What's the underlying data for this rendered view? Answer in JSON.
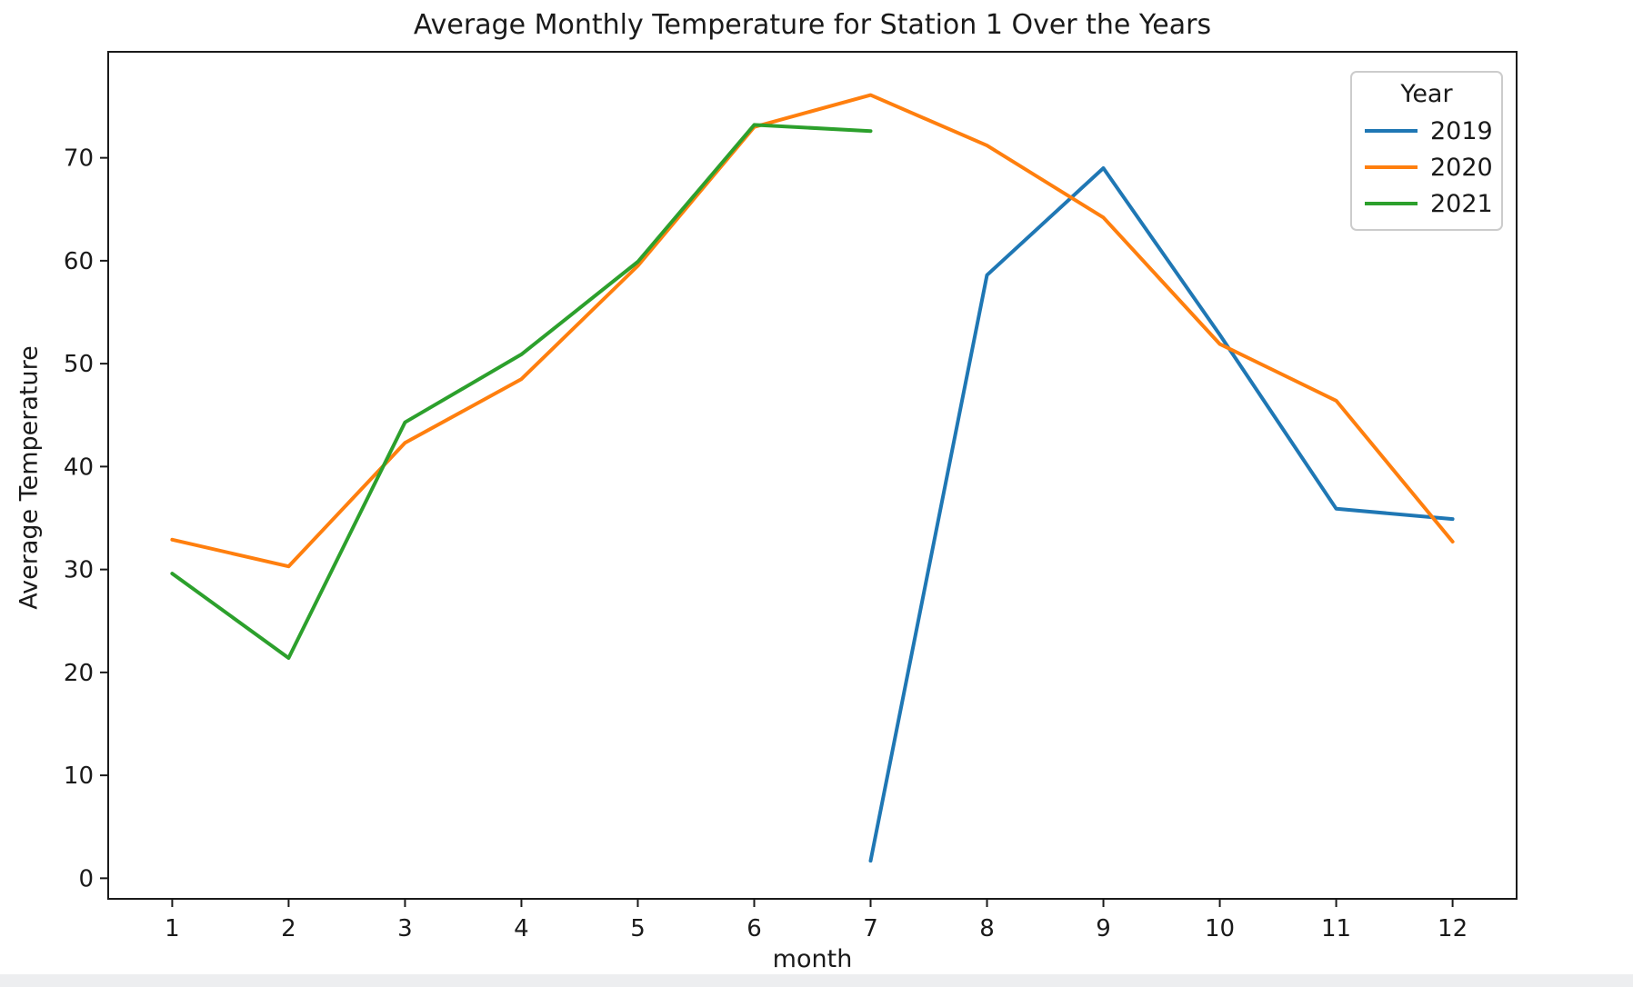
{
  "chart_data": {
    "type": "line",
    "title": "Average Monthly Temperature for Station 1 Over the Years",
    "xlabel": "month",
    "ylabel": "Average Temperature",
    "xlim": [
      0.45,
      12.55
    ],
    "ylim": [
      -2,
      80.3
    ],
    "xticks": [
      1,
      2,
      3,
      4,
      5,
      6,
      7,
      8,
      9,
      10,
      11,
      12
    ],
    "yticks": [
      0,
      10,
      20,
      30,
      40,
      50,
      60,
      70
    ],
    "grid": false,
    "legend": {
      "title": "Year",
      "position": "upper right"
    },
    "series": [
      {
        "name": "2019",
        "color": "#1f77b4",
        "x": [
          7,
          8,
          9,
          10,
          11,
          12
        ],
        "y": [
          1.7,
          58.6,
          69.0,
          52.8,
          35.9,
          34.9
        ]
      },
      {
        "name": "2020",
        "color": "#ff7f0e",
        "x": [
          1,
          2,
          3,
          4,
          5,
          6,
          7,
          8,
          9,
          10,
          11,
          12
        ],
        "y": [
          32.9,
          30.3,
          42.3,
          48.5,
          59.5,
          73.0,
          76.1,
          71.2,
          64.2,
          51.9,
          46.4,
          32.7
        ]
      },
      {
        "name": "2021",
        "color": "#2ca02c",
        "x": [
          1,
          2,
          3,
          4,
          5,
          6,
          7
        ],
        "y": [
          29.6,
          21.4,
          44.3,
          50.9,
          59.9,
          73.2,
          72.6
        ]
      }
    ]
  }
}
